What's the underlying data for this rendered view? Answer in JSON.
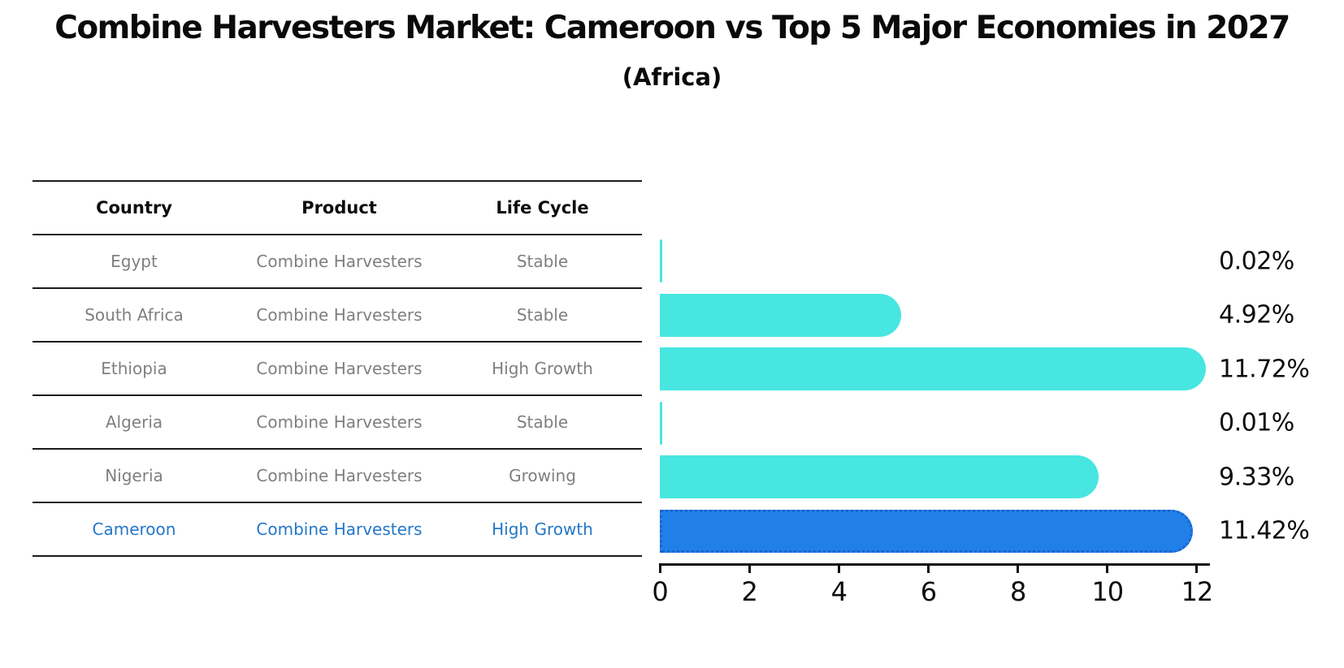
{
  "title": "Combine Harvesters Market: Cameroon vs Top 5 Major Economies in 2027",
  "subtitle": "(Africa)",
  "table": {
    "headers": [
      "Country",
      "Product",
      "Life Cycle"
    ],
    "rows": [
      {
        "country": "Egypt",
        "product": "Combine Harvesters",
        "life_cycle": "Stable",
        "highlight": false
      },
      {
        "country": "South Africa",
        "product": "Combine Harvesters",
        "life_cycle": "Stable",
        "highlight": false
      },
      {
        "country": "Ethiopia",
        "product": "Combine Harvesters",
        "life_cycle": "High Growth",
        "highlight": false
      },
      {
        "country": "Algeria",
        "product": "Combine Harvesters",
        "life_cycle": "Stable",
        "highlight": false
      },
      {
        "country": "Nigeria",
        "product": "Combine Harvesters",
        "life_cycle": "Growing",
        "highlight": false
      },
      {
        "country": "Cameroon",
        "product": "Combine Harvesters",
        "life_cycle": "High Growth",
        "highlight": true
      }
    ]
  },
  "chart_data": {
    "type": "bar",
    "orientation": "horizontal",
    "title": "Combine Harvesters Market: Cameroon vs Top 5 Major Economies in 2027",
    "subtitle": "(Africa)",
    "categories": [
      "Egypt",
      "South Africa",
      "Ethiopia",
      "Algeria",
      "Nigeria",
      "Cameroon"
    ],
    "values": [
      0.02,
      4.92,
      11.72,
      0.01,
      9.33,
      11.42
    ],
    "value_labels": [
      "0.02%",
      "4.92%",
      "11.72%",
      "0.01%",
      "9.33%",
      "11.42%"
    ],
    "xlim": [
      0,
      12
    ],
    "x_ticks": [
      0,
      2,
      4,
      6,
      8,
      10,
      12
    ],
    "grid": false,
    "legend": "none",
    "highlight_index": 5
  },
  "colors": {
    "bar": "#48E6E1",
    "highlight_bar": "#2080E8",
    "highlight_border": "#1C64D0",
    "highlight_text": "#2577C8",
    "row_text": "#7F7F7F",
    "header_text": "#0D0D0D",
    "axis": "#111111"
  }
}
